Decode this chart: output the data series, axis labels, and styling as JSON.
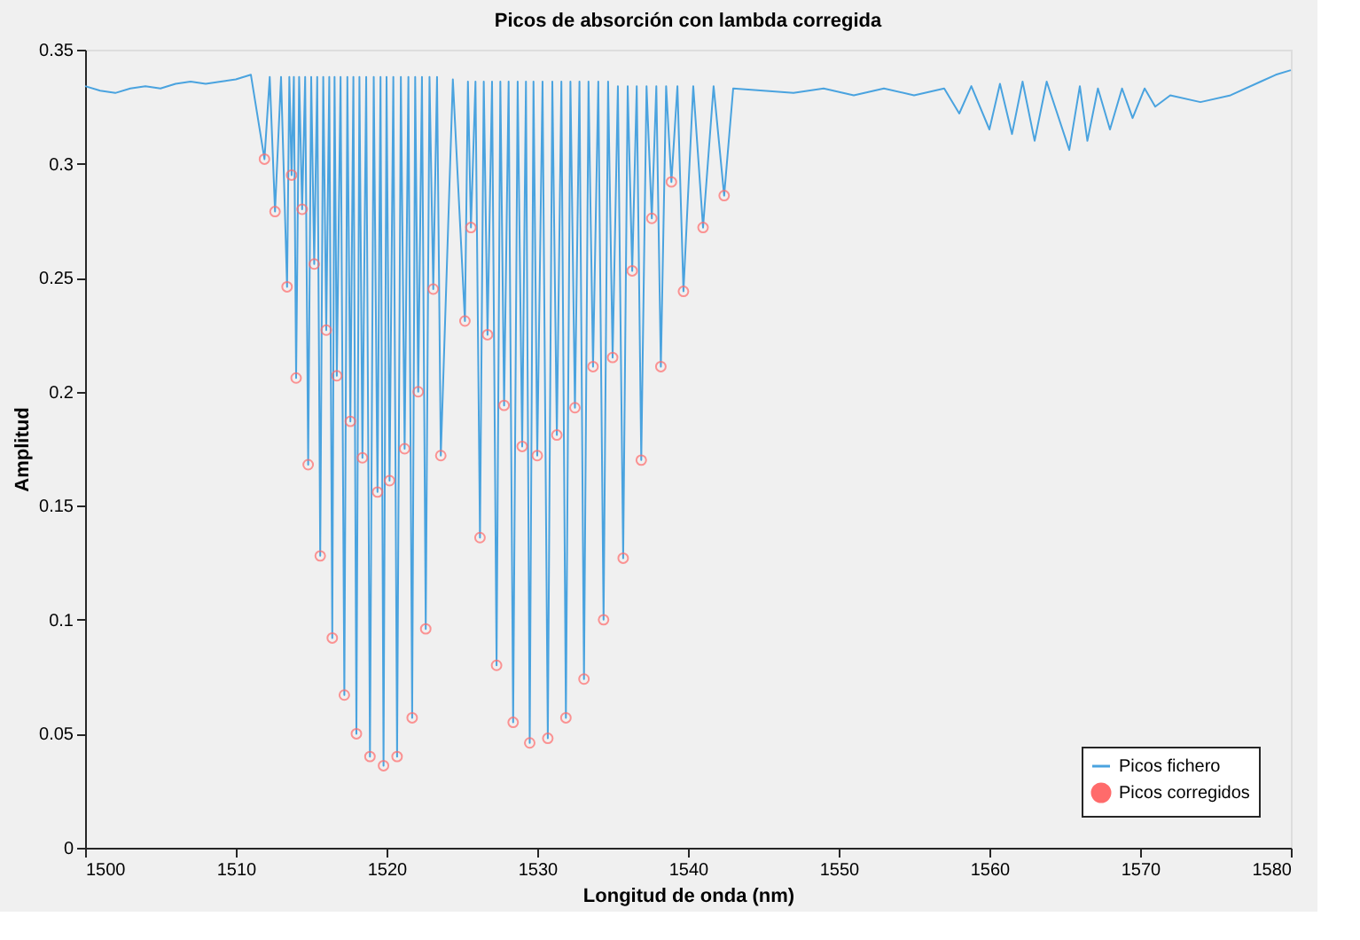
{
  "chart_data": {
    "type": "line",
    "title": "Picos de absorción con lambda corregida",
    "xlabel": "Longitud de onda (nm)",
    "ylabel": "Amplitud",
    "xlim": [
      1500,
      1580
    ],
    "xticks": [
      1500,
      1510,
      1520,
      1530,
      1540,
      1550,
      1560,
      1570,
      1580
    ],
    "ylim": [
      0,
      0.35
    ],
    "yticks": [
      0,
      0.05,
      0.1,
      0.15,
      0.2,
      0.25,
      0.3,
      0.35
    ],
    "grid": false,
    "legend": "bottom right",
    "series": [
      {
        "name": "Picos fichero",
        "color": "#4aa3df",
        "line_style": "solid",
        "marker": "none",
        "x": [
          1500,
          1501,
          1502,
          1503,
          1504,
          1505,
          1506,
          1507,
          1508,
          1509,
          1510,
          1511,
          1511.9,
          1512.25,
          1512.6,
          1513.0,
          1513.4,
          1513.55,
          1513.7,
          1513.85,
          1514.0,
          1514.2,
          1514.4,
          1514.6,
          1514.8,
          1515.0,
          1515.2,
          1515.4,
          1515.6,
          1515.8,
          1516.0,
          1516.2,
          1516.4,
          1516.55,
          1516.7,
          1516.95,
          1517.2,
          1517.4,
          1517.6,
          1517.8,
          1518.0,
          1518.2,
          1518.4,
          1518.65,
          1518.9,
          1519.15,
          1519.4,
          1519.6,
          1519.8,
          1520.0,
          1520.2,
          1520.45,
          1520.7,
          1520.95,
          1521.2,
          1521.45,
          1521.7,
          1521.9,
          1522.1,
          1522.35,
          1522.6,
          1522.85,
          1523.1,
          1523.35,
          1523.6,
          1524.4,
          1525.2,
          1525.4,
          1525.6,
          1525.9,
          1526.2,
          1526.45,
          1526.7,
          1527.0,
          1527.3,
          1527.55,
          1527.8,
          1528.1,
          1528.4,
          1528.7,
          1529.0,
          1529.25,
          1529.5,
          1529.75,
          1530.0,
          1530.35,
          1530.7,
          1531.0,
          1531.3,
          1531.6,
          1531.9,
          1532.2,
          1532.5,
          1532.8,
          1533.1,
          1533.4,
          1533.7,
          1534.05,
          1534.4,
          1534.7,
          1535.0,
          1535.35,
          1535.7,
          1536.0,
          1536.3,
          1536.6,
          1536.9,
          1537.25,
          1537.6,
          1537.9,
          1538.2,
          1538.55,
          1538.9,
          1539.3,
          1539.7,
          1540.35,
          1541.0,
          1541.7,
          1542.4,
          1543,
          1545,
          1547,
          1549,
          1551,
          1553,
          1555,
          1557,
          1558,
          1558.8,
          1560,
          1560.7,
          1561.5,
          1562.2,
          1563,
          1563.8,
          1565.3,
          1566,
          1566.5,
          1567.2,
          1568,
          1568.8,
          1569.5,
          1570.3,
          1571,
          1572,
          1574,
          1576,
          1578,
          1579,
          1580
        ],
        "values": [
          0.334,
          0.332,
          0.331,
          0.333,
          0.334,
          0.333,
          0.335,
          0.336,
          0.335,
          0.336,
          0.337,
          0.339,
          0.302,
          0.338,
          0.279,
          0.338,
          0.246,
          0.338,
          0.295,
          0.338,
          0.206,
          0.338,
          0.28,
          0.338,
          0.168,
          0.338,
          0.256,
          0.338,
          0.128,
          0.338,
          0.227,
          0.338,
          0.092,
          0.338,
          0.207,
          0.338,
          0.067,
          0.338,
          0.187,
          0.338,
          0.05,
          0.338,
          0.171,
          0.338,
          0.04,
          0.338,
          0.156,
          0.338,
          0.036,
          0.338,
          0.161,
          0.338,
          0.04,
          0.338,
          0.175,
          0.338,
          0.057,
          0.338,
          0.2,
          0.338,
          0.096,
          0.338,
          0.245,
          0.338,
          0.172,
          0.337,
          0.231,
          0.336,
          0.272,
          0.336,
          0.136,
          0.336,
          0.225,
          0.336,
          0.08,
          0.336,
          0.194,
          0.336,
          0.055,
          0.336,
          0.176,
          0.336,
          0.046,
          0.336,
          0.172,
          0.336,
          0.048,
          0.336,
          0.181,
          0.336,
          0.057,
          0.336,
          0.193,
          0.336,
          0.074,
          0.336,
          0.211,
          0.336,
          0.1,
          0.336,
          0.215,
          0.334,
          0.127,
          0.334,
          0.253,
          0.334,
          0.17,
          0.334,
          0.276,
          0.334,
          0.211,
          0.334,
          0.292,
          0.334,
          0.244,
          0.334,
          0.272,
          0.334,
          0.286,
          0.333,
          0.332,
          0.331,
          0.333,
          0.33,
          0.333,
          0.33,
          0.333,
          0.322,
          0.334,
          0.315,
          0.335,
          0.313,
          0.336,
          0.31,
          0.336,
          0.306,
          0.334,
          0.31,
          0.333,
          0.315,
          0.333,
          0.32,
          0.333,
          0.325,
          0.33,
          0.327,
          0.33,
          0.336,
          0.339,
          0.341
        ]
      },
      {
        "name": "Picos corregidos",
        "type": "scatter",
        "color": "#ff6b6b",
        "marker": "circle",
        "x": [
          1511.9,
          1512.6,
          1513.4,
          1513.7,
          1514.0,
          1514.4,
          1514.8,
          1515.2,
          1515.6,
          1516.0,
          1516.4,
          1516.7,
          1517.2,
          1517.6,
          1518.0,
          1518.4,
          1518.9,
          1519.4,
          1519.8,
          1520.2,
          1520.7,
          1521.2,
          1521.7,
          1522.1,
          1522.6,
          1523.1,
          1523.6,
          1525.2,
          1525.6,
          1526.2,
          1526.7,
          1527.3,
          1527.8,
          1528.4,
          1529.0,
          1529.5,
          1530.0,
          1530.7,
          1531.3,
          1531.9,
          1532.5,
          1533.1,
          1533.7,
          1534.4,
          1535.0,
          1535.7,
          1536.3,
          1536.9,
          1537.6,
          1538.2,
          1538.9,
          1539.7,
          1541.0,
          1542.4
        ],
        "values": [
          0.302,
          0.279,
          0.246,
          0.295,
          0.206,
          0.28,
          0.168,
          0.256,
          0.128,
          0.227,
          0.092,
          0.207,
          0.067,
          0.187,
          0.05,
          0.171,
          0.04,
          0.156,
          0.036,
          0.161,
          0.04,
          0.175,
          0.057,
          0.2,
          0.096,
          0.245,
          0.172,
          0.231,
          0.272,
          0.136,
          0.225,
          0.08,
          0.194,
          0.055,
          0.176,
          0.046,
          0.172,
          0.048,
          0.181,
          0.057,
          0.193,
          0.074,
          0.211,
          0.1,
          0.215,
          0.127,
          0.253,
          0.17,
          0.276,
          0.211,
          0.292,
          0.244,
          0.272,
          0.286
        ]
      }
    ]
  }
}
